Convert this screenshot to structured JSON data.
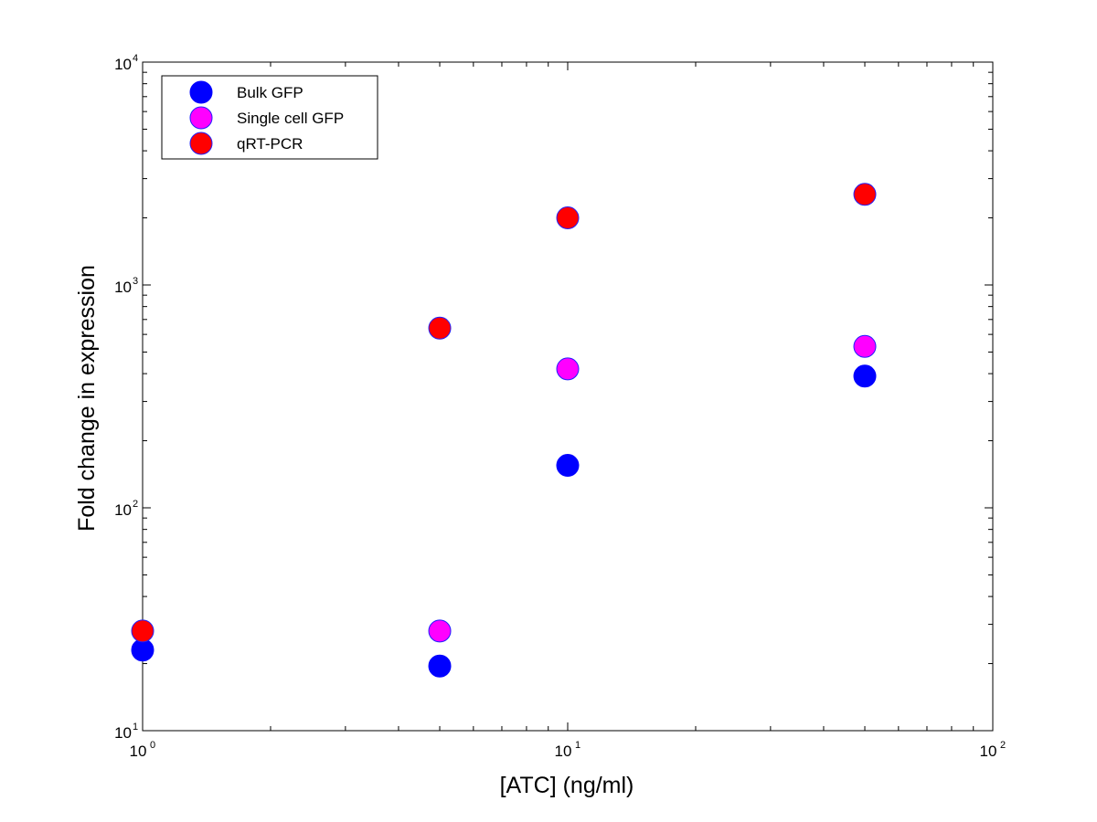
{
  "chart_data": {
    "type": "scatter",
    "title": "",
    "xlabel": "[ATC] (ng/ml)",
    "ylabel": "Fold change in expression",
    "xscale": "log",
    "yscale": "log",
    "xlim": [
      1,
      100
    ],
    "ylim": [
      10,
      10000
    ],
    "x_ticks": [
      {
        "base": "10",
        "exp": "0",
        "value": 1
      },
      {
        "base": "10",
        "exp": "1",
        "value": 10
      },
      {
        "base": "10",
        "exp": "2",
        "value": 100
      }
    ],
    "y_ticks": [
      {
        "base": "10",
        "exp": "1",
        "value": 10
      },
      {
        "base": "10",
        "exp": "2",
        "value": 100
      },
      {
        "base": "10",
        "exp": "3",
        "value": 1000
      },
      {
        "base": "10",
        "exp": "4",
        "value": 10000
      }
    ],
    "grid": false,
    "legend_position": "top-left",
    "series": [
      {
        "name": "Bulk GFP",
        "color": "#0000ff",
        "edge": "#0000ff",
        "points": [
          {
            "x": 1,
            "y": 23
          },
          {
            "x": 5,
            "y": 19.5
          },
          {
            "x": 10,
            "y": 155
          },
          {
            "x": 50,
            "y": 390
          }
        ]
      },
      {
        "name": "Single cell GFP",
        "color": "#ff00ff",
        "edge": "#2020ff",
        "points": [
          {
            "x": 5,
            "y": 28
          },
          {
            "x": 10,
            "y": 420
          },
          {
            "x": 50,
            "y": 530
          }
        ]
      },
      {
        "name": "qRT-PCR",
        "color": "#ff0000",
        "edge": "#2020ff",
        "points": [
          {
            "x": 1,
            "y": 28
          },
          {
            "x": 5,
            "y": 640
          },
          {
            "x": 10,
            "y": 2000
          },
          {
            "x": 50,
            "y": 2550
          }
        ]
      }
    ]
  }
}
